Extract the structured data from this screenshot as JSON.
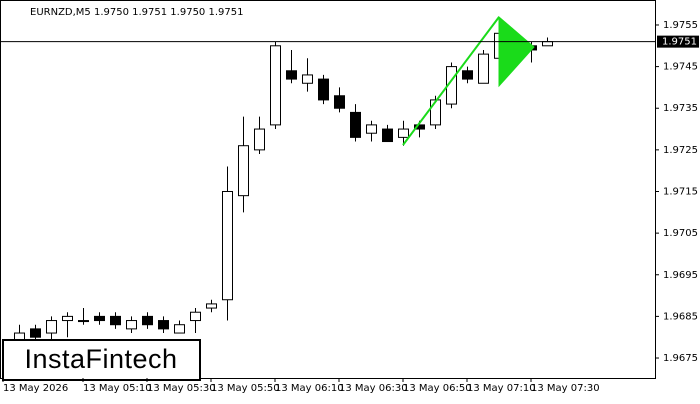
{
  "chart_data": {
    "type": "candlestick",
    "header": "EURNZD,M5  1.9750 1.9751 1.9750 1.9751",
    "logo": "InstaFintech",
    "categories": [
      "13 May 2026",
      null,
      null,
      null,
      null,
      "13 May 05:10",
      null,
      null,
      null,
      "13 May 05:30",
      null,
      null,
      null,
      "13 May 05:50",
      null,
      null,
      null,
      "13 May 06:10",
      null,
      null,
      null,
      "13 May 06:30",
      null,
      null,
      null,
      "13 May 06:50",
      null,
      null,
      null,
      "13 May 07:10",
      null,
      null,
      null,
      "13 May 07:30",
      null
    ],
    "open": [
      null,
      1.9679,
      1.9682,
      1.9681,
      1.9684,
      1.9684,
      1.9685,
      1.9685,
      1.9682,
      1.9685,
      1.9684,
      1.9681,
      1.9684,
      1.9687,
      1.9689,
      1.9714,
      1.9725,
      1.9731,
      1.9744,
      1.9741,
      1.9742,
      1.9738,
      1.9734,
      1.9729,
      1.973,
      1.9728,
      1.9731,
      1.9731,
      1.9736,
      1.9744,
      1.9741,
      1.9747,
      1.9752,
      1.975,
      1.975
    ],
    "high": [
      null,
      1.9683,
      1.9683,
      1.9685,
      1.9686,
      1.9687,
      1.9686,
      1.9686,
      1.9685,
      1.9686,
      1.9685,
      1.9684,
      1.9687,
      1.9689,
      1.9721,
      1.9733,
      1.9733,
      1.9751,
      1.9749,
      1.9747,
      1.9743,
      1.974,
      1.9736,
      1.9732,
      1.9731,
      1.9732,
      1.9732,
      1.9738,
      1.9746,
      1.9745,
      1.9749,
      1.9754,
      1.9753,
      1.9751,
      1.9752
    ],
    "low": [
      null,
      1.9678,
      1.9679,
      1.9679,
      1.968,
      1.9683,
      1.9683,
      1.9682,
      1.9681,
      1.9682,
      1.9681,
      1.9681,
      1.9681,
      1.9686,
      1.9684,
      1.971,
      1.9724,
      1.973,
      1.9741,
      1.9739,
      1.9736,
      1.9734,
      1.9727,
      1.9727,
      1.9727,
      1.9726,
      1.9728,
      1.973,
      1.9735,
      1.9741,
      1.9741,
      1.9746,
      1.9746,
      1.9746,
      1.975
    ],
    "close": [
      null,
      1.9681,
      1.968,
      1.9684,
      1.9685,
      1.9684,
      1.9684,
      1.9683,
      1.9684,
      1.9683,
      1.9682,
      1.9683,
      1.9686,
      1.9688,
      1.9715,
      1.9726,
      1.973,
      1.975,
      1.9742,
      1.9743,
      1.9737,
      1.9735,
      1.9728,
      1.9731,
      1.9727,
      1.973,
      1.973,
      1.9737,
      1.9745,
      1.9742,
      1.9748,
      1.9753,
      1.9748,
      1.9749,
      1.9751
    ],
    "current_price": 1.9751,
    "ylim": [
      1.96702,
      1.9761
    ],
    "yticks": [
      1.9675,
      1.9685,
      1.9695,
      1.9705,
      1.9715,
      1.9725,
      1.9735,
      1.9745,
      1.9755
    ]
  }
}
